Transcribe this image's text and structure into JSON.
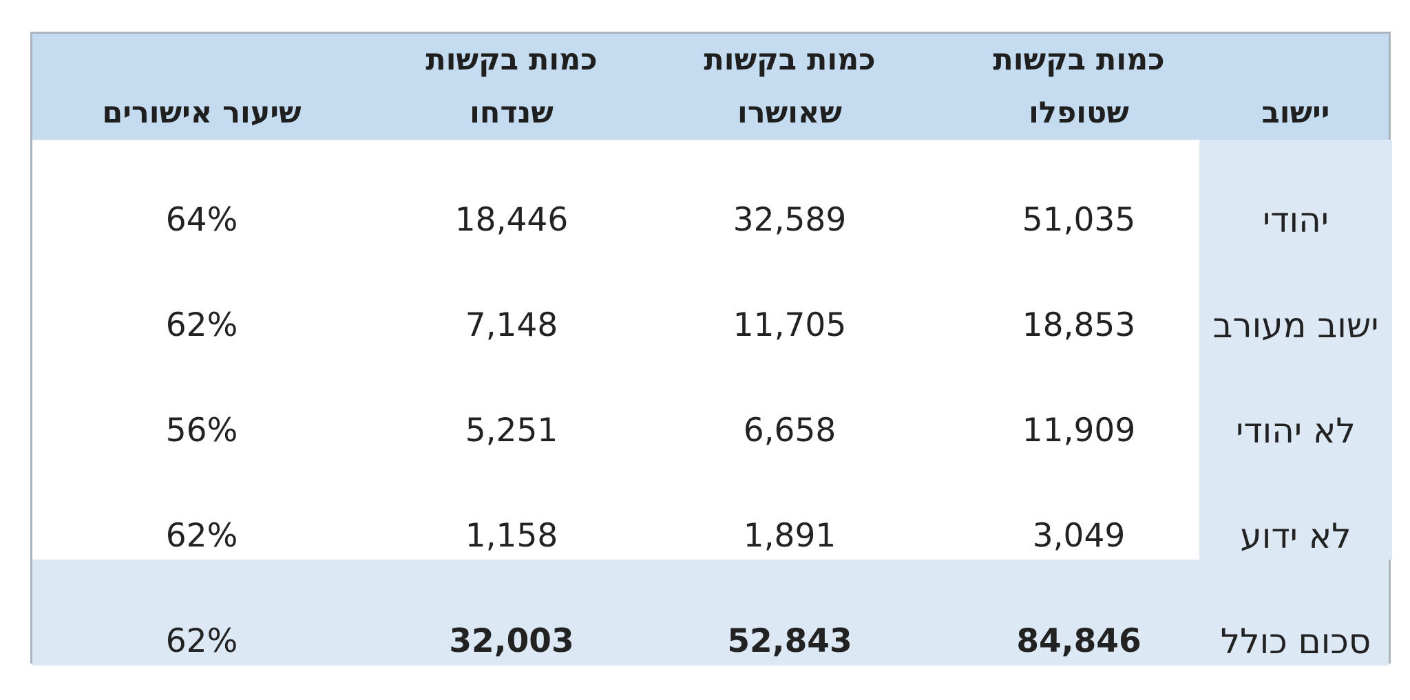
{
  "table": {
    "headers": {
      "settlement": "יישוב",
      "handled_line1": "כמות בקשות",
      "handled_line2": "שטופלו",
      "approved_line1": "כמות בקשות",
      "approved_line2": "שאושרו",
      "rejected_line1": "כמות בקשות",
      "rejected_line2": "שנדחו",
      "approval_rate": "שיעור אישורים"
    },
    "rows": [
      {
        "settlement": "יהודי",
        "handled": "51,035",
        "approved": "32,589",
        "rejected": "18,446",
        "rate": "64%"
      },
      {
        "settlement": "ישוב מעורב",
        "handled": "18,853",
        "approved": "11,705",
        "rejected": "7,148",
        "rate": "62%"
      },
      {
        "settlement": "לא יהודי",
        "handled": "11,909",
        "approved": "6,658",
        "rejected": "5,251",
        "rate": "56%"
      },
      {
        "settlement": "לא ידוע",
        "handled": "3,049",
        "approved": "1,891",
        "rejected": "1,158",
        "rate": "62%"
      }
    ],
    "total": {
      "settlement": "סכום כולל",
      "handled": "84,846",
      "approved": "52,843",
      "rejected": "32,003",
      "rate": "62%"
    }
  },
  "colors": {
    "header_bg": "#c5dcf0",
    "total_bg": "#dce9f5",
    "name_column_bg": "#dce9f5",
    "border": "#a9b4bd"
  }
}
